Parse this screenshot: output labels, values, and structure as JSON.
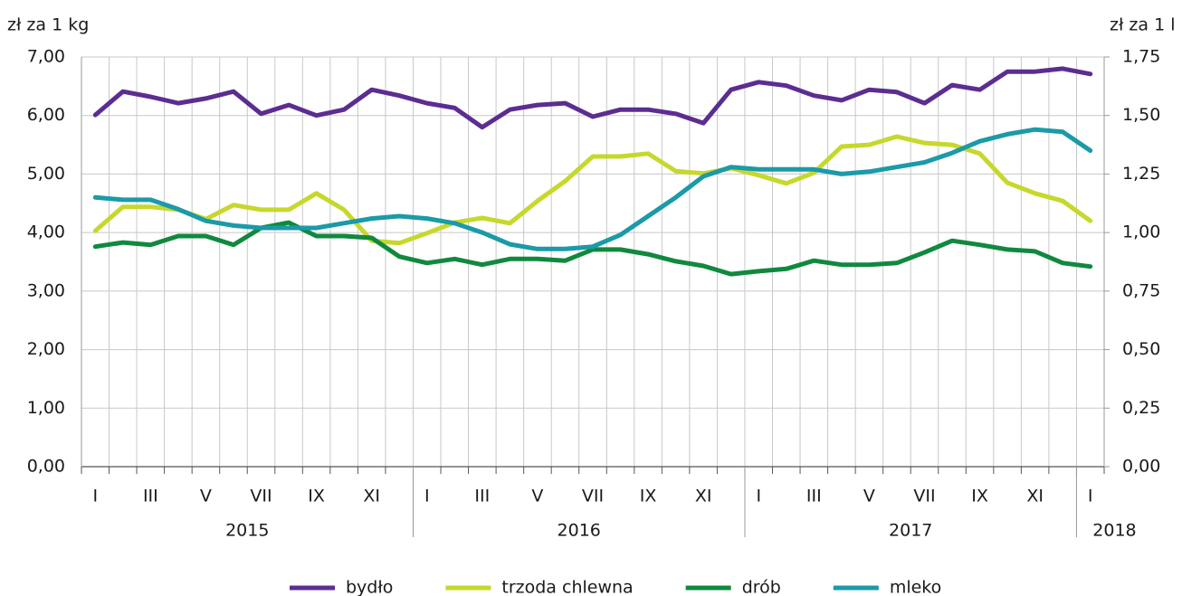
{
  "chart_data": {
    "type": "line",
    "y_label": "zł za 1 kg",
    "y2_label": "zł za 1 l",
    "categories": [
      "I",
      null,
      "III",
      null,
      "V",
      null,
      "VII",
      null,
      "IX",
      null,
      "XI",
      null,
      "I",
      null,
      "III",
      null,
      "V",
      null,
      "VII",
      null,
      "IX",
      null,
      "XI",
      null,
      "I",
      null,
      "III",
      null,
      "V",
      null,
      "VII",
      null,
      "IX",
      null,
      "XI",
      null,
      "I"
    ],
    "x_groups": [
      {
        "label": "2015",
        "size": 12
      },
      {
        "label": "2016",
        "size": 12
      },
      {
        "label": "2017",
        "size": 12
      },
      {
        "label": "2018",
        "size": 1
      }
    ],
    "ylim": [
      0,
      7
    ],
    "yticks": [
      {
        "value": 0,
        "label": "0,00"
      },
      {
        "value": 1,
        "label": "1,00"
      },
      {
        "value": 2,
        "label": "2,00"
      },
      {
        "value": 3,
        "label": "3,00"
      },
      {
        "value": 4,
        "label": "4,00"
      },
      {
        "value": 5,
        "label": "5,00"
      },
      {
        "value": 6,
        "label": "6,00"
      },
      {
        "value": 7,
        "label": "7,00"
      }
    ],
    "y2lim": [
      0,
      1.75
    ],
    "y2ticks": [
      {
        "value": 0,
        "label": "0,00"
      },
      {
        "value": 0.25,
        "label": "0,25"
      },
      {
        "value": 0.5,
        "label": "0,50"
      },
      {
        "value": 0.75,
        "label": "0,75"
      },
      {
        "value": 1,
        "label": "1,00"
      },
      {
        "value": 1.25,
        "label": "1,25"
      },
      {
        "value": 1.5,
        "label": "1,50"
      },
      {
        "value": 1.75,
        "label": "1,75"
      }
    ],
    "grid": true,
    "legend": "bottom",
    "series": [
      {
        "name": "bydło",
        "color": "#5c2d91",
        "values": [
          6.01,
          6.41,
          6.32,
          6.21,
          6.29,
          6.41,
          6.03,
          6.18,
          6.0,
          6.1,
          6.44,
          6.34,
          6.21,
          6.13,
          5.8,
          6.1,
          6.18,
          6.21,
          5.98,
          6.1,
          6.1,
          6.03,
          5.87,
          6.44,
          6.57,
          6.51,
          6.34,
          6.26,
          6.44,
          6.4,
          6.21,
          6.52,
          6.44,
          6.75,
          6.75,
          6.8,
          6.71
        ]
      },
      {
        "name": "trzoda chlewna",
        "color": "#c6d82b",
        "values": [
          4.03,
          4.44,
          4.44,
          4.39,
          4.23,
          4.47,
          4.39,
          4.39,
          4.67,
          4.39,
          3.86,
          3.82,
          3.99,
          4.17,
          4.25,
          4.16,
          4.54,
          4.88,
          5.3,
          5.3,
          5.35,
          5.05,
          5.01,
          5.1,
          4.98,
          4.84,
          5.02,
          5.47,
          5.5,
          5.64,
          5.53,
          5.5,
          5.35,
          4.85,
          4.67,
          4.54,
          4.2
        ]
      },
      {
        "name": "drób",
        "color": "#10893f",
        "values": [
          3.76,
          3.83,
          3.79,
          3.94,
          3.94,
          3.79,
          4.08,
          4.17,
          3.94,
          3.94,
          3.91,
          3.59,
          3.48,
          3.55,
          3.45,
          3.55,
          3.55,
          3.52,
          3.71,
          3.71,
          3.63,
          3.51,
          3.43,
          3.29,
          3.34,
          3.38,
          3.52,
          3.45,
          3.45,
          3.48,
          3.66,
          3.86,
          3.79,
          3.71,
          3.68,
          3.48,
          3.42
        ]
      },
      {
        "name": "mleko",
        "color": "#1b9aa8",
        "axis": "y2",
        "values": [
          1.15,
          1.14,
          1.14,
          1.1,
          1.05,
          1.03,
          1.02,
          1.02,
          1.02,
          1.04,
          1.06,
          1.07,
          1.06,
          1.04,
          1.0,
          0.95,
          0.93,
          0.93,
          0.94,
          0.99,
          1.07,
          1.15,
          1.24,
          1.28,
          1.27,
          1.27,
          1.27,
          1.25,
          1.26,
          1.28,
          1.3,
          1.34,
          1.39,
          1.42,
          1.44,
          1.43,
          1.35
        ]
      }
    ]
  }
}
